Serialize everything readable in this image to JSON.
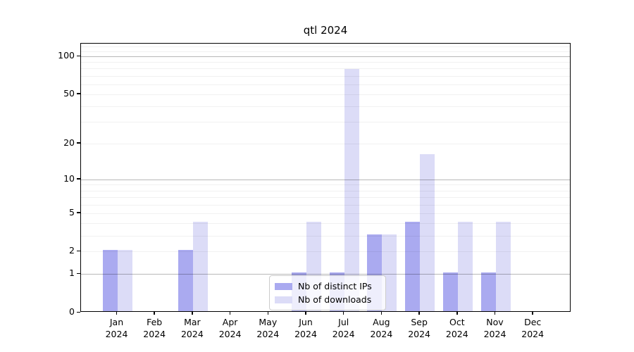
{
  "chart_data": {
    "type": "bar",
    "title": "qtl 2024",
    "categories": [
      "Jan 2024",
      "Feb 2024",
      "Mar 2024",
      "Apr 2024",
      "May 2024",
      "Jun 2024",
      "Jul 2024",
      "Aug 2024",
      "Sep 2024",
      "Oct 2024",
      "Nov 2024",
      "Dec 2024"
    ],
    "months": [
      "Jan",
      "Feb",
      "Mar",
      "Apr",
      "May",
      "Jun",
      "Jul",
      "Aug",
      "Sep",
      "Oct",
      "Nov",
      "Dec"
    ],
    "year": "2024",
    "series": [
      {
        "name": "Nb of distinct IPs",
        "color": "#aaaaf0",
        "values": [
          2,
          0,
          2,
          0,
          0,
          1,
          1,
          3,
          4,
          1,
          1,
          0
        ]
      },
      {
        "name": "Nb of downloads",
        "color": "#dcdcf7",
        "values": [
          2,
          0,
          4,
          0,
          0,
          4,
          77,
          3,
          16,
          4,
          4,
          0
        ]
      }
    ],
    "xlabel": "",
    "ylabel": "",
    "yscale": "log1p",
    "ylim": [
      0,
      126
    ],
    "yticks": [
      0,
      1,
      2,
      5,
      10,
      20,
      50,
      100
    ],
    "grid_major": [
      1,
      10,
      100
    ],
    "grid_minor": [
      2,
      3,
      4,
      5,
      6,
      7,
      8,
      9,
      20,
      30,
      40,
      50,
      60,
      70,
      80,
      90,
      110,
      120
    ],
    "grid": "on",
    "legend_position": "lower center",
    "colors": {
      "major_grid": "#b3b3b3",
      "minor_grid": "#ebebeb",
      "spine": "#000000",
      "background": "#ffffff"
    }
  }
}
